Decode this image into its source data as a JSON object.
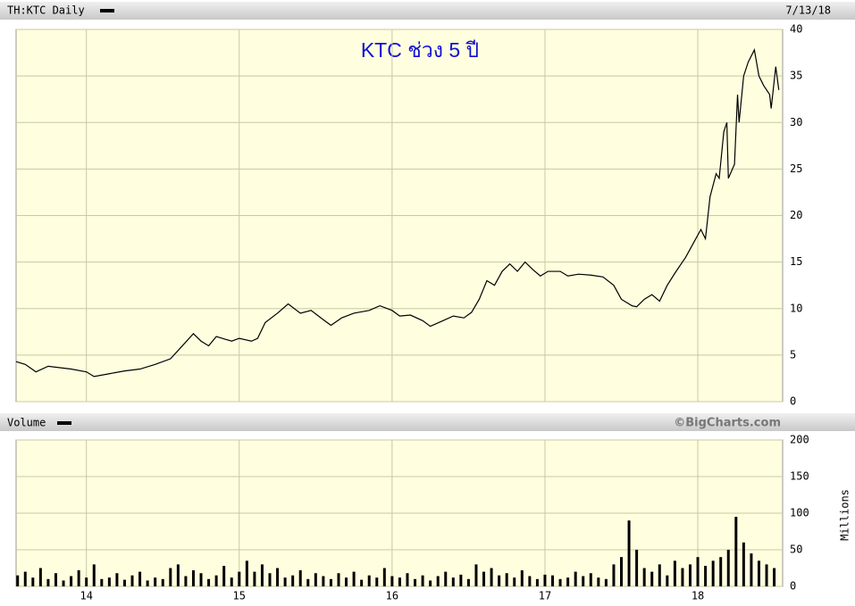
{
  "chart_data": [
    {
      "type": "line",
      "title": "KTC ช่วง 5 ปี",
      "date": "7/13/18",
      "xlim": [
        2013.54,
        2018.555
      ],
      "ylim": [
        0,
        40
      ],
      "yticks": [
        0,
        5,
        10,
        15,
        20,
        25,
        30,
        35,
        40
      ],
      "grid": true,
      "x": [
        2013.54,
        2013.6,
        2013.67,
        2013.75,
        2013.9,
        2014.0,
        2014.05,
        2014.15,
        2014.25,
        2014.35,
        2014.45,
        2014.55,
        2014.6,
        2014.7,
        2014.75,
        2014.8,
        2014.85,
        2014.95,
        2015.0,
        2015.08,
        2015.12,
        2015.17,
        2015.25,
        2015.32,
        2015.4,
        2015.47,
        2015.55,
        2015.6,
        2015.67,
        2015.75,
        2015.85,
        2015.92,
        2016.0,
        2016.05,
        2016.12,
        2016.2,
        2016.25,
        2016.32,
        2016.4,
        2016.47,
        2016.52,
        2016.57,
        2016.62,
        2016.67,
        2016.72,
        2016.77,
        2016.82,
        2016.87,
        2016.92,
        2016.97,
        2017.02,
        2017.1,
        2017.15,
        2017.22,
        2017.3,
        2017.38,
        2017.45,
        2017.5,
        2017.57,
        2017.6,
        2017.65,
        2017.7,
        2017.75,
        2017.8,
        2017.85,
        2017.92,
        2017.97,
        2018.02,
        2018.05,
        2018.08,
        2018.12,
        2018.14,
        2018.17,
        2018.19,
        2018.2,
        2018.24,
        2018.26,
        2018.27,
        2018.3,
        2018.33,
        2018.37,
        2018.4,
        2018.43,
        2018.47,
        2018.48,
        2018.51,
        2018.53
      ],
      "series": [
        {
          "name": "TH:KTC Daily",
          "color": "#000000",
          "values": [
            4.3,
            4.0,
            3.2,
            3.8,
            3.5,
            3.2,
            2.7,
            3.0,
            3.3,
            3.5,
            4.0,
            4.6,
            5.5,
            7.3,
            6.5,
            6.0,
            7.0,
            6.5,
            6.8,
            6.5,
            6.8,
            8.5,
            9.5,
            10.5,
            9.5,
            9.8,
            8.8,
            8.2,
            9.0,
            9.5,
            9.8,
            10.3,
            9.8,
            9.2,
            9.3,
            8.7,
            8.1,
            8.6,
            9.2,
            9.0,
            9.6,
            11.0,
            13.0,
            12.5,
            14.0,
            14.8,
            14.0,
            15.0,
            14.2,
            13.5,
            14.0,
            14.0,
            13.5,
            13.7,
            13.6,
            13.4,
            12.5,
            11.0,
            10.3,
            10.2,
            11.0,
            11.5,
            10.8,
            12.5,
            13.8,
            15.5,
            17.0,
            18.5,
            17.5,
            22,
            24.5,
            24.0,
            29,
            30,
            24,
            25.5,
            33,
            30,
            35,
            36.5,
            37.8,
            35,
            34,
            33,
            31.5,
            36,
            33.5
          ]
        }
      ]
    },
    {
      "type": "bar",
      "credit": "©BigCharts.com",
      "y_label": "Millions",
      "xlim": [
        2013.54,
        2018.555
      ],
      "ylim": [
        0,
        200
      ],
      "yticks": [
        0,
        50,
        100,
        150,
        200
      ],
      "grid": true,
      "xticks": [
        {
          "value": 2014,
          "label": "14"
        },
        {
          "value": 2015,
          "label": "15"
        },
        {
          "value": 2016,
          "label": "16"
        },
        {
          "value": 2017,
          "label": "17"
        },
        {
          "value": 2018,
          "label": "18"
        }
      ],
      "x": [
        2013.55,
        2013.6,
        2013.65,
        2013.7,
        2013.75,
        2013.8,
        2013.85,
        2013.9,
        2013.95,
        2014.0,
        2014.05,
        2014.1,
        2014.15,
        2014.2,
        2014.25,
        2014.3,
        2014.35,
        2014.4,
        2014.45,
        2014.5,
        2014.55,
        2014.6,
        2014.65,
        2014.7,
        2014.75,
        2014.8,
        2014.85,
        2014.9,
        2014.95,
        2015.0,
        2015.05,
        2015.1,
        2015.15,
        2015.2,
        2015.25,
        2015.3,
        2015.35,
        2015.4,
        2015.45,
        2015.5,
        2015.55,
        2015.6,
        2015.65,
        2015.7,
        2015.75,
        2015.8,
        2015.85,
        2015.9,
        2015.95,
        2016.0,
        2016.05,
        2016.1,
        2016.15,
        2016.2,
        2016.25,
        2016.3,
        2016.35,
        2016.4,
        2016.45,
        2016.5,
        2016.55,
        2016.6,
        2016.65,
        2016.7,
        2016.75,
        2016.8,
        2016.85,
        2016.9,
        2016.95,
        2017.0,
        2017.05,
        2017.1,
        2017.15,
        2017.2,
        2017.25,
        2017.3,
        2017.35,
        2017.4,
        2017.45,
        2017.5,
        2017.55,
        2017.6,
        2017.65,
        2017.7,
        2017.75,
        2017.8,
        2017.85,
        2017.9,
        2017.95,
        2018.0,
        2018.05,
        2018.1,
        2018.15,
        2018.2,
        2018.25,
        2018.3,
        2018.35,
        2018.4,
        2018.45,
        2018.5
      ],
      "series": [
        {
          "name": "Volume",
          "color": "#000000",
          "values": [
            15,
            20,
            12,
            25,
            10,
            18,
            8,
            14,
            22,
            12,
            30,
            10,
            12,
            18,
            9,
            15,
            20,
            8,
            12,
            10,
            25,
            30,
            14,
            22,
            18,
            10,
            15,
            28,
            12,
            20,
            35,
            20,
            30,
            18,
            25,
            12,
            15,
            22,
            10,
            18,
            14,
            10,
            18,
            12,
            20,
            9,
            15,
            12,
            25,
            14,
            12,
            18,
            10,
            15,
            8,
            14,
            20,
            12,
            16,
            10,
            30,
            20,
            25,
            15,
            18,
            12,
            22,
            14,
            10,
            16,
            15,
            10,
            12,
            20,
            14,
            18,
            12,
            10,
            30,
            40,
            90,
            50,
            25,
            20,
            30,
            15,
            35,
            25,
            30,
            40,
            28,
            35,
            40,
            50,
            95,
            60,
            45,
            35,
            30,
            25
          ]
        }
      ]
    }
  ]
}
